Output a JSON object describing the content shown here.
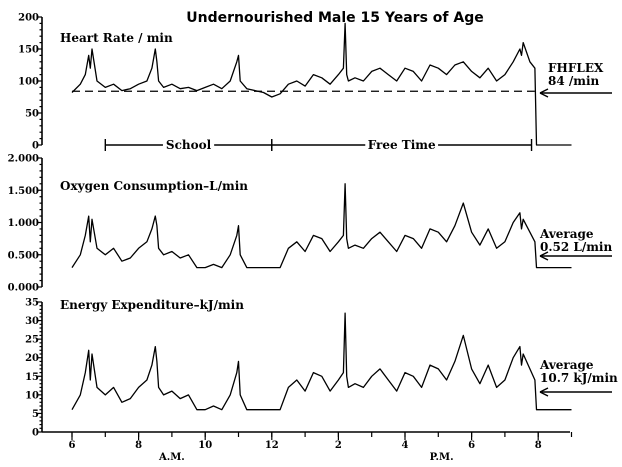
{
  "chart_data": {
    "type": "line",
    "title": "Undernourished Male 15 Years of Age",
    "x_ticks": [
      "6",
      "8",
      "10",
      "12",
      "2",
      "4",
      "6",
      "8"
    ],
    "x_tick_hours": [
      6,
      8,
      10,
      12,
      14,
      16,
      18,
      20
    ],
    "x_minor_hours": [
      6,
      7,
      8,
      9,
      10,
      11,
      12,
      13,
      14,
      15,
      16,
      17,
      18,
      19,
      20,
      21
    ],
    "x_range_hours": [
      6,
      21
    ],
    "x_period_labels": [
      {
        "label": "A.M.",
        "hour": 9
      },
      {
        "label": "P.M.",
        "hour": 17.1
      }
    ],
    "periods": [
      {
        "label": "School",
        "start": 7,
        "end": 12
      },
      {
        "label": "Free Time",
        "start": 12,
        "end": 19.8
      }
    ],
    "panels": [
      {
        "name": "Heart Rate / min",
        "ylim": [
          0,
          200
        ],
        "y_ticks": [
          0,
          50,
          100,
          150,
          200
        ],
        "y_tick_labels": [
          "0",
          "50",
          "100",
          "150",
          "200"
        ],
        "reference": {
          "label_lines": [
            "FHFLEX",
            "84 /min"
          ],
          "value": 84
        },
        "series": {
          "x": [
            6.0,
            6.25,
            6.4,
            6.5,
            6.55,
            6.6,
            6.75,
            7.0,
            7.25,
            7.5,
            7.75,
            8.0,
            8.25,
            8.4,
            8.5,
            8.55,
            8.6,
            8.75,
            9.0,
            9.25,
            9.5,
            9.75,
            10.0,
            10.25,
            10.5,
            10.75,
            10.95,
            11.0,
            11.05,
            11.25,
            11.5,
            11.75,
            12.0,
            12.25,
            12.5,
            12.75,
            13.0,
            13.25,
            13.5,
            13.75,
            14.0,
            14.15,
            14.2,
            14.25,
            14.3,
            14.5,
            14.75,
            15.0,
            15.25,
            15.5,
            15.75,
            16.0,
            16.25,
            16.5,
            16.75,
            17.0,
            17.25,
            17.5,
            17.75,
            18.0,
            18.25,
            18.5,
            18.75,
            19.0,
            19.25,
            19.45,
            19.5,
            19.55,
            19.75,
            19.9,
            19.95,
            20.0,
            20.5,
            21.0
          ],
          "y": [
            82,
            95,
            110,
            140,
            120,
            150,
            100,
            90,
            95,
            85,
            88,
            95,
            100,
            120,
            150,
            130,
            100,
            90,
            95,
            88,
            90,
            85,
            90,
            95,
            88,
            100,
            130,
            140,
            100,
            88,
            85,
            82,
            75,
            80,
            95,
            100,
            92,
            110,
            105,
            95,
            110,
            120,
            190,
            110,
            100,
            105,
            100,
            115,
            120,
            110,
            100,
            120,
            115,
            100,
            125,
            120,
            110,
            125,
            130,
            115,
            105,
            120,
            100,
            110,
            130,
            150,
            140,
            160,
            130,
            120,
            0,
            0,
            0,
            0
          ]
        }
      },
      {
        "name": "Oxygen Consumption–L/min",
        "ylim": [
          0,
          2.0
        ],
        "y_ticks": [
          0,
          0.5,
          1.0,
          1.5,
          2.0
        ],
        "y_tick_labels": [
          "0.000",
          "0.500",
          "1.000",
          "1.500",
          "2.000"
        ],
        "reference": {
          "label_lines": [
            "Average",
            "0.52 L/min"
          ],
          "value": 0.52
        },
        "series": {
          "x": [
            6.0,
            6.25,
            6.4,
            6.5,
            6.55,
            6.6,
            6.75,
            7.0,
            7.25,
            7.5,
            7.75,
            8.0,
            8.25,
            8.4,
            8.5,
            8.55,
            8.6,
            8.75,
            9.0,
            9.25,
            9.5,
            9.75,
            10.0,
            10.25,
            10.5,
            10.75,
            10.95,
            11.0,
            11.05,
            11.25,
            11.5,
            11.75,
            12.0,
            12.25,
            12.5,
            12.75,
            13.0,
            13.25,
            13.5,
            13.75,
            14.0,
            14.15,
            14.2,
            14.25,
            14.3,
            14.5,
            14.75,
            15.0,
            15.25,
            15.5,
            15.75,
            16.0,
            16.25,
            16.5,
            16.75,
            17.0,
            17.25,
            17.5,
            17.75,
            18.0,
            18.25,
            18.5,
            18.75,
            19.0,
            19.25,
            19.45,
            19.5,
            19.55,
            19.75,
            19.9,
            19.95,
            20.0,
            20.5,
            21.0
          ],
          "y": [
            0.3,
            0.5,
            0.8,
            1.1,
            0.7,
            1.05,
            0.6,
            0.5,
            0.6,
            0.4,
            0.45,
            0.6,
            0.7,
            0.9,
            1.1,
            0.95,
            0.6,
            0.5,
            0.55,
            0.45,
            0.5,
            0.3,
            0.3,
            0.35,
            0.3,
            0.5,
            0.8,
            0.95,
            0.5,
            0.3,
            0.3,
            0.3,
            0.3,
            0.3,
            0.6,
            0.7,
            0.55,
            0.8,
            0.75,
            0.55,
            0.7,
            0.8,
            1.6,
            0.75,
            0.6,
            0.65,
            0.6,
            0.75,
            0.85,
            0.7,
            0.55,
            0.8,
            0.75,
            0.6,
            0.9,
            0.85,
            0.7,
            0.95,
            1.3,
            0.85,
            0.65,
            0.9,
            0.6,
            0.7,
            1.0,
            1.15,
            0.9,
            1.05,
            0.85,
            0.7,
            0.3,
            0.3,
            0.3,
            0.3
          ]
        }
      },
      {
        "name": "Energy Expenditure–kJ/min",
        "ylim": [
          0,
          35
        ],
        "y_ticks": [
          0,
          5,
          10,
          15,
          20,
          25,
          30,
          35
        ],
        "y_tick_labels": [
          "0",
          "5",
          "10",
          "15",
          "20",
          "25",
          "30",
          "35"
        ],
        "reference": {
          "label_lines": [
            "Average",
            "10.7 kJ/min"
          ],
          "value": 10.7
        },
        "series": {
          "x": [
            6.0,
            6.25,
            6.4,
            6.5,
            6.55,
            6.6,
            6.75,
            7.0,
            7.25,
            7.5,
            7.75,
            8.0,
            8.25,
            8.4,
            8.5,
            8.55,
            8.6,
            8.75,
            9.0,
            9.25,
            9.5,
            9.75,
            10.0,
            10.25,
            10.5,
            10.75,
            10.95,
            11.0,
            11.05,
            11.25,
            11.5,
            11.75,
            12.0,
            12.25,
            12.5,
            12.75,
            13.0,
            13.25,
            13.5,
            13.75,
            14.0,
            14.15,
            14.2,
            14.25,
            14.3,
            14.5,
            14.75,
            15.0,
            15.25,
            15.5,
            15.75,
            16.0,
            16.25,
            16.5,
            16.75,
            17.0,
            17.25,
            17.5,
            17.75,
            18.0,
            18.25,
            18.5,
            18.75,
            19.0,
            19.25,
            19.45,
            19.5,
            19.55,
            19.75,
            19.9,
            19.95,
            20.0,
            20.5,
            21.0
          ],
          "y": [
            6,
            10,
            16,
            22,
            14,
            21,
            12,
            10,
            12,
            8,
            9,
            12,
            14,
            18,
            23,
            19,
            12,
            10,
            11,
            9,
            10,
            6,
            6,
            7,
            6,
            10,
            16,
            19,
            10,
            6,
            6,
            6,
            6,
            6,
            12,
            14,
            11,
            16,
            15,
            11,
            14,
            16,
            32,
            15,
            12,
            13,
            12,
            15,
            17,
            14,
            11,
            16,
            15,
            12,
            18,
            17,
            14,
            19,
            26,
            17,
            13,
            18,
            12,
            14,
            20,
            23,
            18,
            21,
            17,
            14,
            6,
            6,
            6,
            6
          ]
        }
      }
    ]
  }
}
